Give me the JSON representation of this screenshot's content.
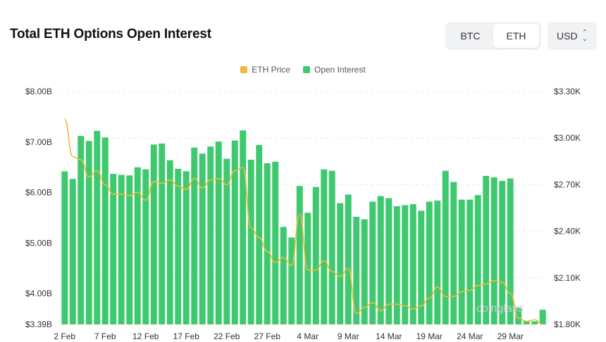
{
  "header": {
    "title": "Total ETH Options Open Interest",
    "asset_options": [
      "BTC",
      "ETH"
    ],
    "asset_selected": "ETH",
    "currency": "USD"
  },
  "colors": {
    "bar": "#3ec96f",
    "price": "#f0b93b",
    "grid": "#ececec"
  },
  "icons": {
    "currency_toggle": "chevron-up-down-icon",
    "watermark_logo": "coinglass-logo"
  },
  "watermark": "coinglass",
  "chart_data": {
    "type": "bar",
    "legend_position": "top-center",
    "grid": true,
    "x": [
      "2 Feb",
      "3 Feb",
      "4 Feb",
      "5 Feb",
      "6 Feb",
      "7 Feb",
      "8 Feb",
      "9 Feb",
      "10 Feb",
      "11 Feb",
      "12 Feb",
      "13 Feb",
      "14 Feb",
      "15 Feb",
      "16 Feb",
      "17 Feb",
      "18 Feb",
      "19 Feb",
      "20 Feb",
      "21 Feb",
      "22 Feb",
      "23 Feb",
      "24 Feb",
      "25 Feb",
      "26 Feb",
      "27 Feb",
      "28 Feb",
      "1 Mar",
      "2 Mar",
      "3 Mar",
      "4 Mar",
      "5 Mar",
      "6 Mar",
      "7 Mar",
      "8 Mar",
      "9 Mar",
      "10 Mar",
      "11 Mar",
      "12 Mar",
      "13 Mar",
      "14 Mar",
      "15 Mar",
      "16 Mar",
      "17 Mar",
      "18 Mar",
      "19 Mar",
      "20 Mar",
      "21 Mar",
      "22 Mar",
      "23 Mar",
      "24 Mar",
      "25 Mar",
      "26 Mar",
      "27 Mar",
      "28 Mar",
      "29 Mar",
      "30 Mar",
      "31 Mar",
      "1 Apr",
      "2 Apr"
    ],
    "x_tick_labels": [
      "2 Feb",
      "7 Feb",
      "12 Feb",
      "17 Feb",
      "22 Feb",
      "27 Feb",
      "4 Mar",
      "9 Mar",
      "14 Mar",
      "19 Mar",
      "24 Mar",
      "29 Mar"
    ],
    "series": [
      {
        "name": "Open Interest",
        "axis": "left",
        "type": "bar",
        "values": [
          6.42,
          6.27,
          7.12,
          7.02,
          7.22,
          7.09,
          6.37,
          6.35,
          6.34,
          6.5,
          6.46,
          6.95,
          6.97,
          6.64,
          6.47,
          6.42,
          6.89,
          6.77,
          6.91,
          7.01,
          6.67,
          7.03,
          7.23,
          6.65,
          6.94,
          6.58,
          6.61,
          5.32,
          5.11,
          6.13,
          5.6,
          6.11,
          6.46,
          6.43,
          5.79,
          5.96,
          5.52,
          5.47,
          5.82,
          5.93,
          5.89,
          5.73,
          5.75,
          5.77,
          5.64,
          5.82,
          5.84,
          6.43,
          6.21,
          5.86,
          5.86,
          5.95,
          6.33,
          6.3,
          6.23,
          6.28,
          3.72,
          3.46,
          3.45,
          3.68
        ]
      },
      {
        "name": "ETH Price",
        "axis": "right",
        "type": "line",
        "values": [
          3.12,
          2.88,
          2.86,
          2.75,
          2.79,
          2.7,
          2.64,
          2.64,
          2.63,
          2.65,
          2.6,
          2.72,
          2.71,
          2.73,
          2.69,
          2.67,
          2.74,
          2.68,
          2.73,
          2.74,
          2.7,
          2.79,
          2.81,
          2.42,
          2.36,
          2.27,
          2.2,
          2.23,
          2.18,
          2.51,
          2.15,
          2.15,
          2.21,
          2.14,
          2.11,
          2.16,
          1.87,
          1.91,
          1.94,
          1.89,
          1.93,
          1.93,
          1.92,
          1.9,
          1.92,
          1.97,
          2.04,
          1.98,
          1.98,
          2.01,
          2.02,
          2.05,
          2.06,
          2.08,
          2.07,
          2.0,
          1.84,
          1.82,
          1.83,
          1.8
        ]
      }
    ],
    "y_left": {
      "ticks": [
        "$3.39B",
        "$4.00B",
        "$5.00B",
        "$6.00B",
        "$7.00B",
        "$8.00B"
      ],
      "range": [
        3.39,
        8.0
      ]
    },
    "y_right": {
      "ticks": [
        "$1.80K",
        "$2.10K",
        "$2.40K",
        "$2.70K",
        "$3.00K",
        "$3.30K"
      ],
      "range": [
        1.8,
        3.3
      ]
    }
  }
}
